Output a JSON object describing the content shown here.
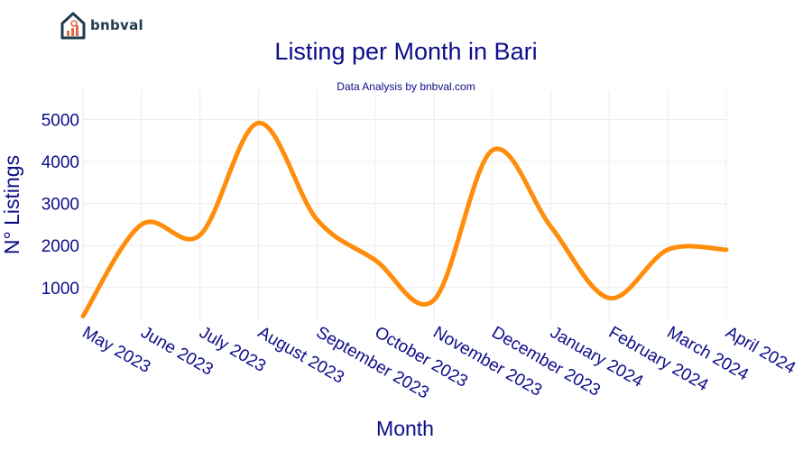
{
  "brand": {
    "name": "bnbval",
    "icon": "house-chart-icon"
  },
  "chart_data": {
    "type": "line",
    "title": "Listing per Month in Bari",
    "subtitle": "Data Analysis by bnbval.com",
    "xlabel": "Month",
    "ylabel": "N° Listings",
    "categories": [
      "May 2023",
      "June 2023",
      "July 2023",
      "August 2023",
      "September 2023",
      "October 2023",
      "November 2023",
      "December 2023",
      "January 2024",
      "February 2024",
      "March 2024",
      "April 2024"
    ],
    "series": [
      {
        "values": [
          320,
          2500,
          2250,
          4920,
          2620,
          1650,
          700,
          4270,
          2450,
          750,
          1900,
          1900
        ],
        "color": "#ff8c0a"
      }
    ],
    "yticks": [
      1000,
      2000,
      3000,
      4000,
      5000
    ],
    "ylim": [
      200,
      5700
    ],
    "grid": true,
    "line_shape": "spline",
    "text_color": "#0d0d8a"
  }
}
